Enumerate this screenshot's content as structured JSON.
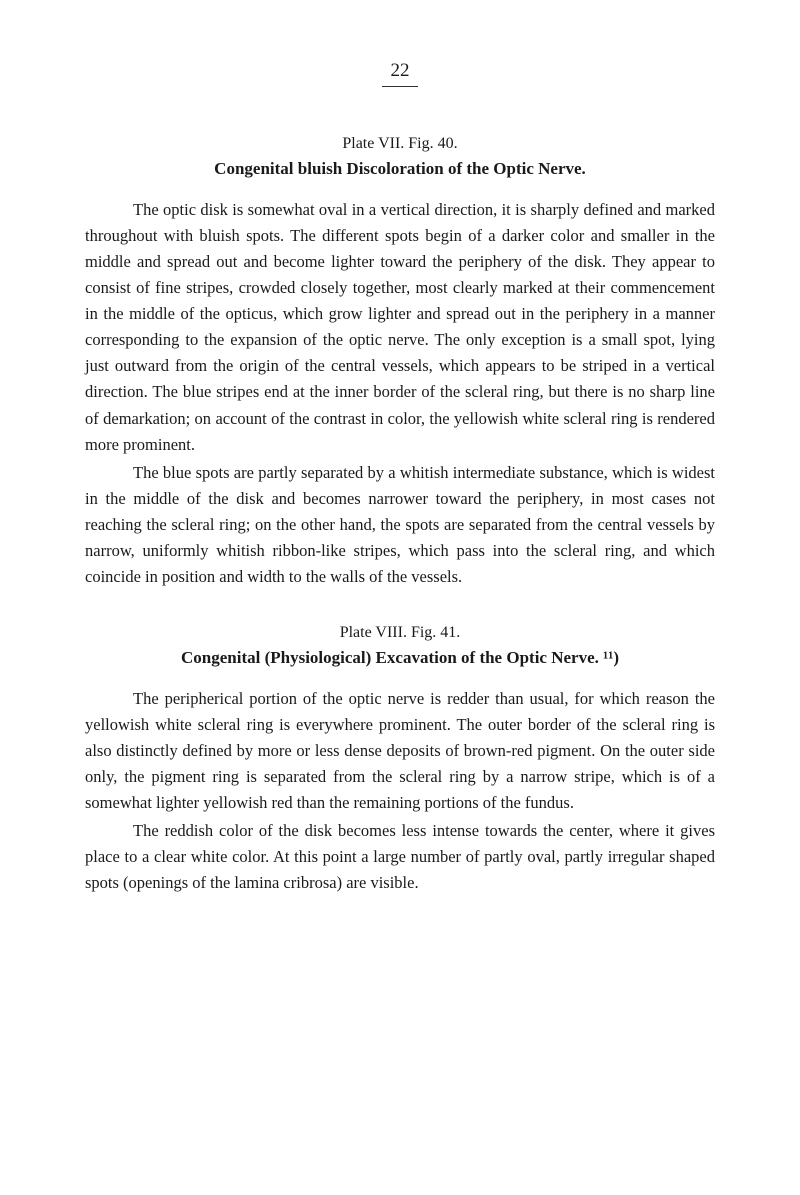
{
  "page": {
    "number": "22"
  },
  "section1": {
    "plate_line": "Plate VII. Fig. 40.",
    "title": "Congenital bluish Discoloration of the Optic Nerve.",
    "paragraphs": [
      "The optic disk is somewhat oval in a vertical direction, it is sharply defined and marked throughout with bluish spots. The different spots begin of a darker color and smaller in the middle and spread out and become lighter toward the periphery of the disk. They appear to consist of fine stripes, crowded closely together, most clearly marked at their commencement in the middle of the opticus, which grow lighter and spread out in the periphery in a manner corresponding to the expansion of the optic nerve. The only exception is a small spot, lying just outward from the origin of the central vessels, which appears to be striped in a vertical direction. The blue stripes end at the inner border of the scleral ring, but there is no sharp line of demarkation; on account of the contrast in color, the yellowish white scleral ring is rendered more prominent.",
      "The blue spots are partly separated by a whitish intermediate substance, which is widest in the middle of the disk and becomes narrower toward the periphery, in most cases not reaching the scleral ring; on the other hand, the spots are separated from the central vessels by narrow, uniformly whitish ribbon-like stripes, which pass into the scleral ring, and which coincide in position and width to the walls of the vessels."
    ]
  },
  "section2": {
    "plate_line": "Plate VIII. Fig. 41.",
    "title": "Congenital (Physiological) Excavation of the Optic Nerve. ¹¹)",
    "paragraphs": [
      "The peripherical portion of the optic nerve is redder than usual, for which reason the yellowish white scleral ring is everywhere prominent. The outer border of the scleral ring is also distinctly defined by more or less dense deposits of brown-red pigment. On the outer side only, the pigment ring is separated from the scleral ring by a narrow stripe, which is of a somewhat lighter yellowish red than the remaining portions of the fundus.",
      "The reddish color of the disk becomes less intense towards the center, where it gives place to a clear white color. At this point a large number of partly oval, partly irregular shaped spots (openings of the lamina cribrosa) are visible."
    ]
  }
}
